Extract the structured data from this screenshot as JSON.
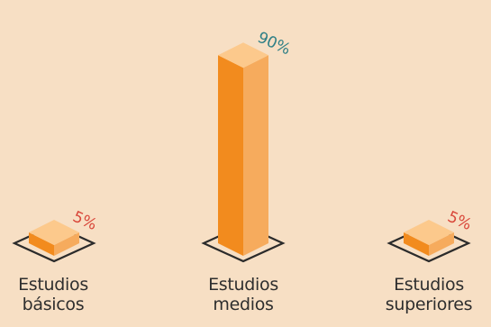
{
  "chart_data": {
    "type": "bar",
    "categories": [
      [
        "Estudios",
        "básicos"
      ],
      [
        "Estudios",
        "medios"
      ],
      [
        "Estudios",
        "superiores"
      ]
    ],
    "values": [
      5,
      90,
      5
    ],
    "value_labels": [
      "5%",
      "90%",
      "5%"
    ],
    "value_label_colors": [
      "#d9473a",
      "#2f7f86",
      "#d9473a"
    ],
    "ylim": [
      0,
      100
    ],
    "grid": false,
    "colors": {
      "bar_front": "#f28b1e",
      "bar_side": "#f6ab5d",
      "bar_top": "#fcc98c",
      "background": "#f7dfc4",
      "base_outline": "#2b2b2b"
    }
  }
}
